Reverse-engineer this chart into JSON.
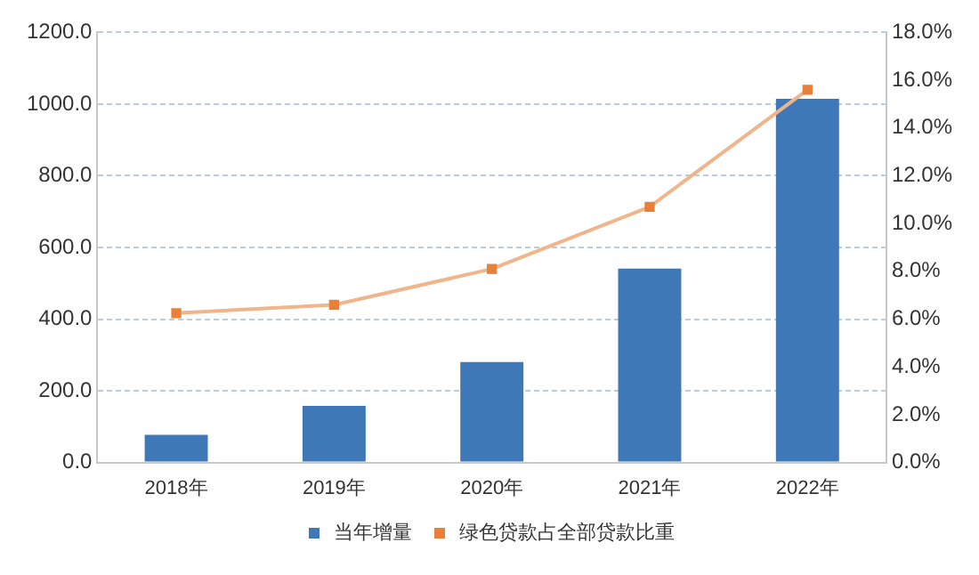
{
  "chart_data": {
    "type": "bar",
    "categories": [
      "2018年",
      "2019年",
      "2020年",
      "2021年",
      "2022年"
    ],
    "series": [
      {
        "name": "当年增量",
        "color": "#3f78b6",
        "values": [
          77,
          158,
          280,
          541,
          1015
        ]
      },
      {
        "name": "绿色贷款占全部贷款比重",
        "type": "line",
        "axis": "y2",
        "color": "#f0b58a",
        "marker": "square",
        "values": [
          6.25,
          6.6,
          8.1,
          10.7,
          15.6
        ]
      }
    ],
    "ylim": [
      0,
      1200
    ],
    "yticks": [
      {
        "value": 0,
        "label": "0.0"
      },
      {
        "value": 200,
        "label": "200.0"
      },
      {
        "value": 400,
        "label": "400.0"
      },
      {
        "value": 600,
        "label": "600.0"
      },
      {
        "value": 800,
        "label": "800.0"
      },
      {
        "value": 1000,
        "label": "1000.0"
      },
      {
        "value": 1200,
        "label": "1200.0"
      }
    ],
    "y2lim": [
      0,
      18
    ],
    "y2ticks": [
      {
        "value": 0,
        "label": "0.0%"
      },
      {
        "value": 2,
        "label": "2.0%"
      },
      {
        "value": 4,
        "label": "4.0%"
      },
      {
        "value": 6,
        "label": "6.0%"
      },
      {
        "value": 8,
        "label": "8.0%"
      },
      {
        "value": 10,
        "label": "10.0%"
      },
      {
        "value": 12,
        "label": "12.0%"
      },
      {
        "value": 14,
        "label": "14.0%"
      },
      {
        "value": 16,
        "label": "16.0%"
      },
      {
        "value": 18,
        "label": "18.0%"
      }
    ],
    "grid": "y",
    "legend": "bottom"
  }
}
